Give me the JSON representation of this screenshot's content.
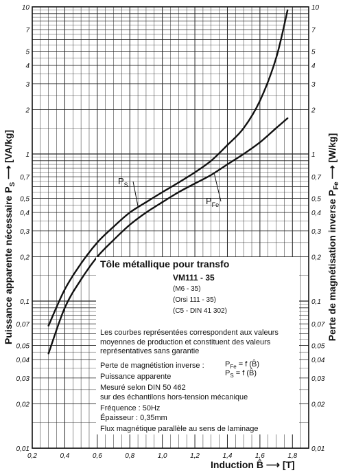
{
  "chart_data": {
    "type": "line",
    "title": "Tôle métallique pour transfo",
    "xlabel": "Induction B̂ ⟶ [T]",
    "ylabel_left": "Puissance apparente nécessaire P",
    "ylabel_left_sub": "S",
    "ylabel_left_unit": "⟶ [VA/kg]",
    "ylabel_right": "Perte de magnétisation inverse P",
    "ylabel_right_sub": "Fe",
    "ylabel_right_unit": "⟶ [W/kg]",
    "xlim": [
      0.2,
      1.9
    ],
    "ylim": [
      0.01,
      10
    ],
    "yscale": "log",
    "grid": true,
    "x_ticks": [
      "0,2",
      "0,4",
      "0,6",
      "0,8",
      "1,0",
      "1,2",
      "1,4",
      "1,6",
      "1,8"
    ],
    "y_ticks": [
      "0,01",
      "0,02",
      "0,03",
      "0,04",
      "0,05",
      "0,07",
      "0,1",
      "0,2",
      "0,3",
      "0,4",
      "0,5",
      "0,7",
      "1",
      "2",
      "3",
      "4",
      "5",
      "7",
      "10"
    ],
    "series": [
      {
        "name": "P",
        "name_sub": "S",
        "x": [
          0.3,
          0.4,
          0.5,
          0.6,
          0.7,
          0.8,
          0.9,
          1.0,
          1.1,
          1.2,
          1.3,
          1.4,
          1.5,
          1.6,
          1.7,
          1.77
        ],
        "y": [
          0.068,
          0.12,
          0.18,
          0.25,
          0.32,
          0.4,
          0.47,
          0.55,
          0.64,
          0.75,
          0.9,
          1.15,
          1.5,
          2.3,
          4.5,
          9.5
        ]
      },
      {
        "name": "P",
        "name_sub": "Fe",
        "x": [
          0.3,
          0.4,
          0.5,
          0.6,
          0.7,
          0.8,
          0.9,
          1.0,
          1.1,
          1.2,
          1.3,
          1.4,
          1.5,
          1.6,
          1.7,
          1.77
        ],
        "y": [
          0.044,
          0.09,
          0.14,
          0.2,
          0.26,
          0.33,
          0.4,
          0.47,
          0.55,
          0.63,
          0.72,
          0.85,
          1.0,
          1.2,
          1.5,
          1.75
        ]
      }
    ]
  },
  "info": {
    "title": "Tôle métallique pour transfo",
    "model": "VM111 - 35",
    "equivalents": [
      "(M6 - 35)",
      "(Orsi 111 - 35)",
      "(C5 - DIN 41 302)"
    ],
    "note": "Les courbes représentées correspondent aux valeurs moyennes de production et constituent des valeurs représentatives sans garantie",
    "loss_label": "Perte de magnétistion inverse :",
    "loss_formula_main": "P",
    "loss_formula_sub": "Fe",
    "loss_formula_rest": " = f (B̂)",
    "power_label": "Puissance apparente",
    "power_formula_main": "P",
    "power_formula_sub": "S",
    "power_formula_rest": " = f (B̂)",
    "measure": "Mesuré selon DIN 50 462",
    "samples": "sur des échantilons hors-tension mécanique",
    "frequency": "Fréquence : 50Hz",
    "thickness": "Épaisseur : 0,35mm",
    "flux": "Flux magnétique parallèle au sens de laminage"
  }
}
